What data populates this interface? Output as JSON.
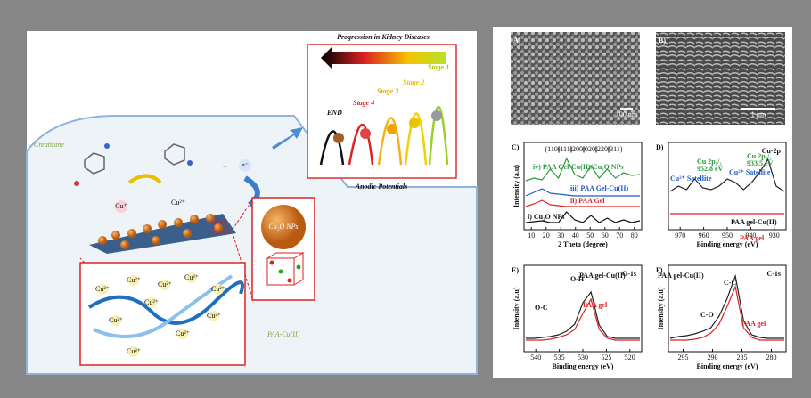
{
  "schematic": {
    "title": "Progression in Kidney Diseases",
    "stages": [
      "END",
      "Stage 4",
      "Stage 3",
      "Stage 2",
      "Stage 1"
    ],
    "axis_label": "Anodic Potentials",
    "molecule": "Creatinine",
    "ions": {
      "cu2": "Cu²⁺",
      "cu1": "Cu⁺",
      "electron": "e⁻"
    },
    "nanoparticle": "Cu₂O NPs",
    "polymer": "PAA-Cu(II)"
  },
  "panels": [
    {
      "label": "A)",
      "scale_bar": "100 nm"
    },
    {
      "label": "B)",
      "scale_bar": "1 μm"
    },
    {
      "label": "C)",
      "miller": [
        "(110)",
        "(111)",
        "(200)",
        "(020)",
        "(220)",
        "(311)"
      ],
      "traces": [
        "iv) PAA Gel-Cu(II)/Cu₂O NPs",
        "iii) PAA Gel-Cu(II)",
        "ii) PAA Gel",
        "i) Cu₂O NPs"
      ],
      "xlabel": "2 Theta (degree)",
      "ylabel": "Intensity (a.u)",
      "xticks": [
        10,
        20,
        30,
        40,
        50,
        60,
        70,
        80
      ]
    },
    {
      "label": "D)",
      "title": "Cu-2p",
      "peaks": [
        "Cu 2p₁/₂",
        "952.8 eV",
        "Cu 2p₃/₂",
        "933.5 eV"
      ],
      "satellites": [
        "Cu²⁺ Satellite",
        "Cu²⁺ Satellite"
      ],
      "traces": [
        "PAA gel-Cu(II)",
        "PAA gel"
      ],
      "xlabel": "Binding energy (eV)",
      "xticks": [
        970,
        960,
        950,
        940,
        930
      ]
    },
    {
      "label": "E)",
      "title": "O-1s",
      "bonds": [
        "O-H",
        "O-C"
      ],
      "traces": [
        "PAA gel-Cu(II)",
        "PAA gel"
      ],
      "xlabel": "Binding energy (eV)",
      "ylabel": "Intensity (a.u)",
      "xticks": [
        540,
        535,
        530,
        525,
        520
      ]
    },
    {
      "label": "F)",
      "title": "C-1s",
      "bonds": [
        "C-C",
        "C-O"
      ],
      "traces": [
        "PAA gel-Cu(II)",
        "PAA gel"
      ],
      "xlabel": "Binding energy (eV)",
      "ylabel": "Intensity (a.u)",
      "xticks": [
        295,
        290,
        285,
        280
      ]
    }
  ]
}
